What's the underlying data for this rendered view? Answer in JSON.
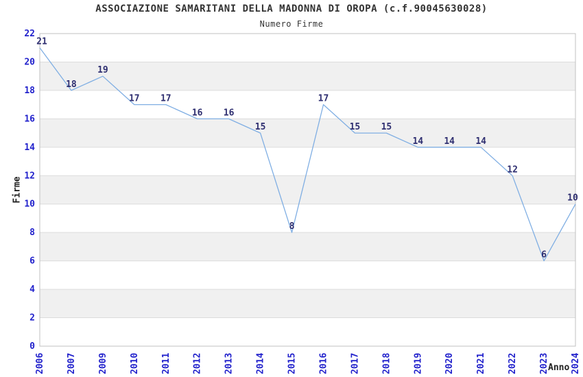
{
  "chart_data": {
    "type": "line",
    "title": "ASSOCIAZIONE SAMARITANI DELLA MADONNA DI OROPA (c.f.90045630028)",
    "subtitle": "Numero Firme",
    "xlabel": "Anno",
    "ylabel": "Firme",
    "categories": [
      "2006",
      "2007",
      "2009",
      "2010",
      "2011",
      "2012",
      "2013",
      "2014",
      "2015",
      "2016",
      "2017",
      "2018",
      "2019",
      "2020",
      "2021",
      "2022",
      "2023",
      "2024"
    ],
    "values": [
      21,
      18,
      19,
      17,
      17,
      16,
      16,
      15,
      8,
      17,
      15,
      15,
      14,
      14,
      14,
      12,
      6,
      10
    ],
    "ylim": [
      0,
      22
    ],
    "ytick_step": 2,
    "grid": "horizontal",
    "alternating_bands": true,
    "legend_position": "none",
    "point_labels_visible": true,
    "colors": {
      "line": "#7FAEE3",
      "point_label": "#2E2E70",
      "tick_label": "#2222CC",
      "band_fill": "#F0F0F0",
      "grid_line": "#DCDCDC",
      "plot_border": "#C0C0C0",
      "title_text": "#333333",
      "background": "#FFFFFF"
    }
  }
}
